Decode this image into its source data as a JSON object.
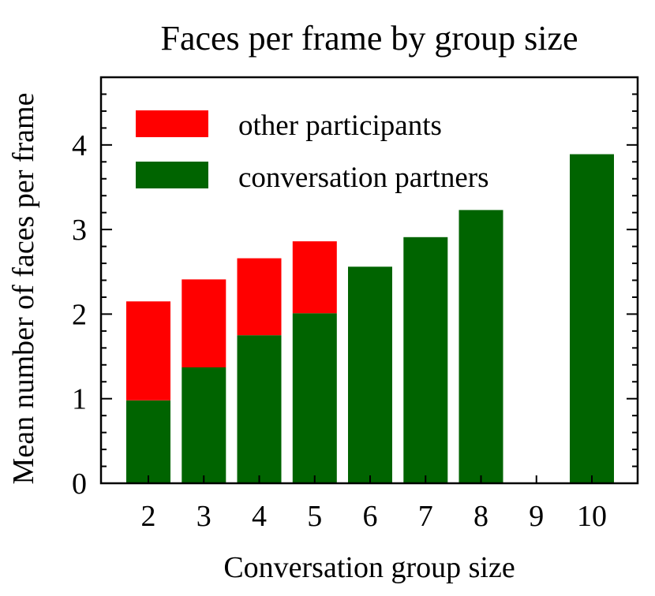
{
  "chart_data": {
    "type": "bar",
    "stacked": true,
    "title": "Faces per frame by group size",
    "xlabel": "Conversation group size",
    "ylabel": "Mean number of faces per frame",
    "categories": [
      "2",
      "3",
      "4",
      "5",
      "6",
      "7",
      "8",
      "9",
      "10"
    ],
    "series": [
      {
        "name": "conversation partners",
        "color": "#006400",
        "values": [
          0.98,
          1.37,
          1.75,
          2.01,
          2.56,
          2.91,
          3.23,
          null,
          3.89
        ]
      },
      {
        "name": "other participants",
        "color": "#ff0000",
        "values": [
          1.17,
          1.04,
          0.91,
          0.85,
          0,
          0,
          0,
          null,
          0
        ]
      }
    ],
    "ylim": [
      0,
      4.8
    ],
    "yticks": [
      0,
      1,
      2,
      3,
      4
    ],
    "ytick_labels": [
      "0",
      "1",
      "2",
      "3",
      "4"
    ],
    "grid": false,
    "legend": {
      "placement": "top-left",
      "order": [
        "other participants",
        "conversation partners"
      ]
    }
  }
}
